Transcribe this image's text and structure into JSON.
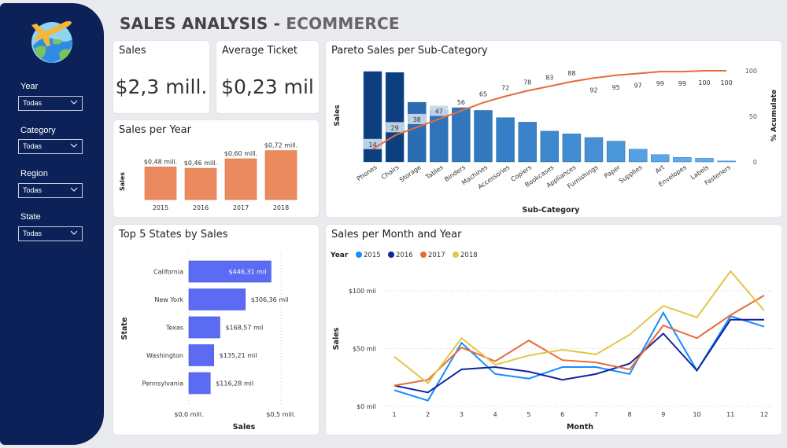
{
  "header": {
    "title_main": "SALES ANALYSIS - ",
    "title_sub": "ECOMMERCE"
  },
  "sidebar": {
    "logo": "globe-airplane-icon",
    "filters": [
      {
        "label": "Year",
        "value": "Todas"
      },
      {
        "label": "Category",
        "value": "Todas"
      },
      {
        "label": "Region",
        "value": "Todas"
      },
      {
        "label": "State",
        "value": "Todas"
      }
    ]
  },
  "kpis": {
    "sales": {
      "title": "Sales",
      "value": "$2,3 mill."
    },
    "avg_ticket": {
      "title": "Average Ticket",
      "value": "$0,23 mil"
    }
  },
  "colors": {
    "sidebar": "#0b2157",
    "year_bar": "#eb895f",
    "pareto_line": "#e66c37",
    "state_bar": "#5b6cf2",
    "series_2015": "#118dff",
    "series_2016": "#12239e",
    "series_2017": "#e66c37",
    "series_2018": "#e3c547"
  },
  "chart_data": [
    {
      "id": "sales_per_year",
      "type": "bar",
      "title": "Sales per Year",
      "ylabel": "Sales",
      "xlabel": "",
      "categories": [
        "2015",
        "2016",
        "2017",
        "2018"
      ],
      "values": [
        0.48,
        0.46,
        0.6,
        0.72
      ],
      "data_labels": [
        "$0,48 mill.",
        "$0,46 mill.",
        "$0,60 mill.",
        "$0,72 mill."
      ],
      "units": "million USD",
      "ylim": [
        0,
        0.75
      ]
    },
    {
      "id": "pareto",
      "type": "bar",
      "title": "Pareto Sales per Sub-Category",
      "xlabel": "Sub-Category",
      "ylabel": "Sales",
      "y2label": "% Acumulate",
      "categories": [
        "Phones",
        "Chairs",
        "Storage",
        "Tables",
        "Binders",
        "Machines",
        "Accessories",
        "Copiers",
        "Bookcases",
        "Appliances",
        "Furnishings",
        "Paper",
        "Supplies",
        "Art",
        "Envelopes",
        "Labels",
        "Fasteners"
      ],
      "bar_values_relative": [
        100,
        99,
        66,
        57,
        60,
        57,
        49,
        44,
        34,
        31,
        27,
        23,
        14,
        8,
        5,
        4,
        1
      ],
      "series": [
        {
          "name": "% Acumulate",
          "type": "line",
          "values": [
            14,
            29,
            38,
            47,
            56,
            65,
            72,
            78,
            83,
            88,
            92,
            95,
            97,
            99,
            99,
            100,
            100
          ]
        }
      ],
      "y2_ticks": [
        "0",
        "50",
        "100"
      ],
      "y2lim": [
        0,
        100
      ]
    },
    {
      "id": "top_states",
      "type": "bar",
      "orientation": "horizontal",
      "title": "Top 5 States by Sales",
      "xlabel": "Sales",
      "ylabel": "State",
      "categories": [
        "California",
        "New York",
        "Texas",
        "Washington",
        "Pennsylvania"
      ],
      "values": [
        446.31,
        306.36,
        168.57,
        135.21,
        116.28
      ],
      "data_labels": [
        "$446,31 mil",
        "$306,36 mil",
        "$168,57 mil",
        "$135,21 mil",
        "$116,28 mil"
      ],
      "units": "thousand USD",
      "x_ticks": [
        "$0,0 mill.",
        "$0,5 mill."
      ],
      "xlim": [
        0,
        500
      ]
    },
    {
      "id": "sales_month_year",
      "type": "line",
      "title": "Sales per Month and Year",
      "legend_title": "Year",
      "legend_position": "top-left",
      "xlabel": "Month",
      "ylabel": "Sales",
      "x": [
        1,
        2,
        3,
        4,
        5,
        6,
        7,
        8,
        9,
        10,
        11,
        12
      ],
      "y_ticks": [
        "$0 mil",
        "$50 mil",
        "$100 mil"
      ],
      "ylim": [
        0,
        100
      ],
      "grid": true,
      "series": [
        {
          "name": "2015",
          "values": [
            14,
            5,
            55,
            28,
            24,
            34,
            34,
            28,
            81,
            31,
            78,
            69
          ]
        },
        {
          "name": "2016",
          "values": [
            18,
            12,
            32,
            34,
            30,
            23,
            28,
            37,
            63,
            31,
            75,
            75
          ]
        },
        {
          "name": "2017",
          "values": [
            18,
            23,
            51,
            39,
            57,
            40,
            38,
            32,
            70,
            59,
            79,
            96
          ]
        },
        {
          "name": "2018",
          "values": [
            43,
            20,
            59,
            36,
            44,
            49,
            45,
            62,
            87,
            77,
            117,
            83
          ]
        }
      ]
    }
  ]
}
